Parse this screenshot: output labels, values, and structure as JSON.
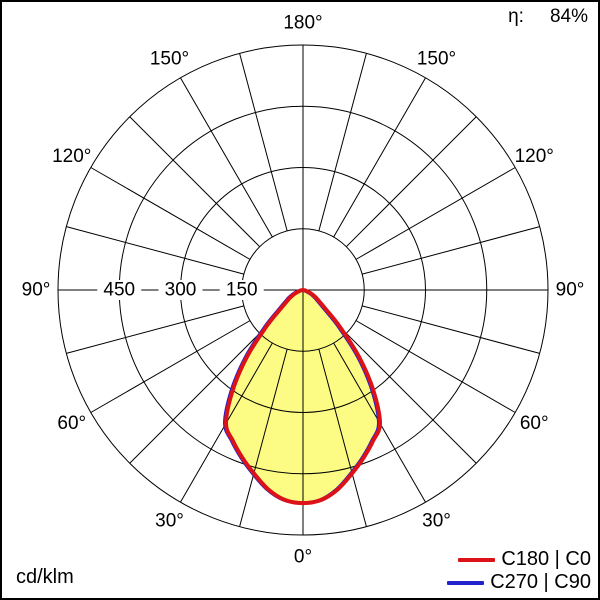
{
  "header": {
    "efficiency_label": "η:",
    "efficiency_value": "84%"
  },
  "footer": {
    "unit_label": "cd/klm"
  },
  "chart_data": {
    "type": "polar",
    "subtype": "luminous-intensity-distribution",
    "title": "",
    "unit": "cd/klm",
    "efficiency_percent": 84,
    "angle_unit": "°",
    "angle_labels_deg": [
      0,
      30,
      60,
      90,
      120,
      150,
      180
    ],
    "spoke_step_deg": 15,
    "rings": [
      150,
      300,
      450,
      600
    ],
    "radial_axis_labels": [
      450,
      300,
      150
    ],
    "r_max": 600,
    "grid": true,
    "legend_position": "bottom-right",
    "fill_color": "#fcfc85",
    "grid_color": "#000000",
    "gamma_deg": [
      0,
      5,
      10,
      15,
      20,
      25,
      30,
      35,
      40,
      45,
      50,
      55,
      60,
      65,
      70,
      75,
      80,
      85,
      90
    ],
    "series": [
      {
        "name": "C180 | C0",
        "color": "#dd1118",
        "values": [
          522,
          516,
          495,
          465,
          436,
          407,
          377,
          300,
          213,
          128,
          72,
          48,
          36,
          24,
          14,
          7,
          3,
          1,
          0
        ]
      },
      {
        "name": "C270 | C90",
        "color": "#2222cc",
        "values": [
          522,
          516,
          495,
          465,
          436,
          407,
          377,
          300,
          213,
          128,
          72,
          48,
          36,
          24,
          14,
          7,
          3,
          1,
          0
        ]
      }
    ]
  }
}
